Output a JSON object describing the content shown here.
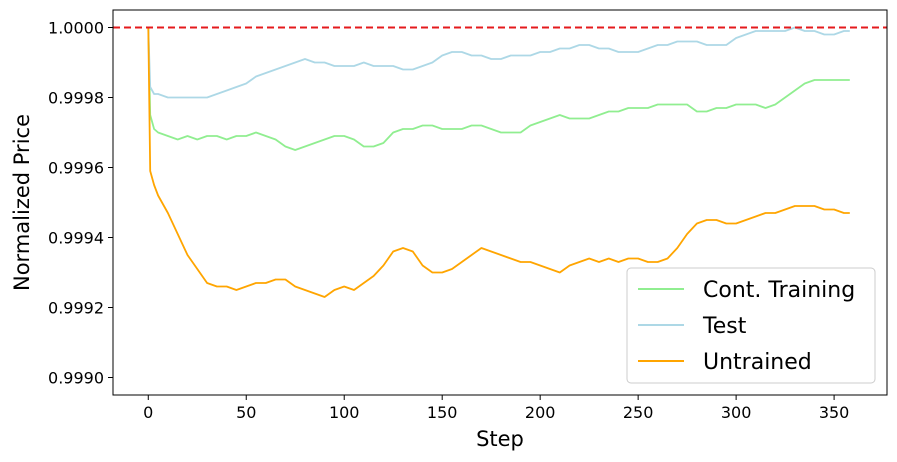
{
  "chart_data": {
    "type": "line",
    "xlabel": "Step",
    "ylabel": "Normalized Price",
    "xlim": [
      -18,
      377
    ],
    "ylim": [
      0.99895,
      1.00005
    ],
    "xticks": [
      0,
      50,
      100,
      150,
      200,
      250,
      300,
      350
    ],
    "yticks": [
      0.999,
      0.9992,
      0.9994,
      0.9996,
      0.9998,
      1.0
    ],
    "ytick_labels": [
      "0.9990",
      "0.9992",
      "0.9994",
      "0.9996",
      "0.9998",
      "1.0000"
    ],
    "reference_line": {
      "y": 1.0,
      "style": "dashed",
      "color": "#e41a1c"
    },
    "legend_position": "lower-right",
    "grid": false,
    "series": [
      {
        "name": "Cont. Training",
        "color": "#90ee90",
        "x": [
          0,
          1,
          3,
          5,
          10,
          15,
          20,
          25,
          30,
          35,
          40,
          45,
          50,
          55,
          60,
          65,
          70,
          75,
          80,
          85,
          90,
          95,
          100,
          105,
          110,
          115,
          120,
          125,
          130,
          135,
          140,
          145,
          150,
          155,
          160,
          165,
          170,
          175,
          180,
          185,
          190,
          195,
          200,
          205,
          210,
          215,
          220,
          225,
          230,
          235,
          240,
          245,
          250,
          255,
          260,
          265,
          270,
          275,
          280,
          285,
          290,
          295,
          300,
          305,
          310,
          315,
          320,
          325,
          330,
          335,
          340,
          345,
          350,
          355,
          358
        ],
        "y": [
          1.0,
          0.99975,
          0.99971,
          0.9997,
          0.99969,
          0.99968,
          0.99969,
          0.99968,
          0.99969,
          0.99969,
          0.99968,
          0.99969,
          0.99969,
          0.9997,
          0.99969,
          0.99968,
          0.99966,
          0.99965,
          0.99966,
          0.99967,
          0.99968,
          0.99969,
          0.99969,
          0.99968,
          0.99966,
          0.99966,
          0.99967,
          0.9997,
          0.99971,
          0.99971,
          0.99972,
          0.99972,
          0.99971,
          0.99971,
          0.99971,
          0.99972,
          0.99972,
          0.99971,
          0.9997,
          0.9997,
          0.9997,
          0.99972,
          0.99973,
          0.99974,
          0.99975,
          0.99974,
          0.99974,
          0.99974,
          0.99975,
          0.99976,
          0.99976,
          0.99977,
          0.99977,
          0.99977,
          0.99978,
          0.99978,
          0.99978,
          0.99978,
          0.99976,
          0.99976,
          0.99977,
          0.99977,
          0.99978,
          0.99978,
          0.99978,
          0.99977,
          0.99978,
          0.9998,
          0.99982,
          0.99984,
          0.99985,
          0.99985,
          0.99985,
          0.99985,
          0.99985
        ]
      },
      {
        "name": "Test",
        "color": "#add8e6",
        "x": [
          0,
          1,
          3,
          5,
          10,
          15,
          20,
          25,
          30,
          35,
          40,
          45,
          50,
          55,
          60,
          65,
          70,
          75,
          80,
          85,
          90,
          95,
          100,
          105,
          110,
          115,
          120,
          125,
          130,
          135,
          140,
          145,
          150,
          155,
          160,
          165,
          170,
          175,
          180,
          185,
          190,
          195,
          200,
          205,
          210,
          215,
          220,
          225,
          230,
          235,
          240,
          245,
          250,
          255,
          260,
          265,
          270,
          275,
          280,
          285,
          290,
          295,
          300,
          305,
          310,
          315,
          320,
          325,
          330,
          335,
          340,
          345,
          350,
          355,
          358
        ],
        "y": [
          1.0,
          0.99983,
          0.99981,
          0.99981,
          0.9998,
          0.9998,
          0.9998,
          0.9998,
          0.9998,
          0.99981,
          0.99982,
          0.99983,
          0.99984,
          0.99986,
          0.99987,
          0.99988,
          0.99989,
          0.9999,
          0.99991,
          0.9999,
          0.9999,
          0.99989,
          0.99989,
          0.99989,
          0.9999,
          0.99989,
          0.99989,
          0.99989,
          0.99988,
          0.99988,
          0.99989,
          0.9999,
          0.99992,
          0.99993,
          0.99993,
          0.99992,
          0.99992,
          0.99991,
          0.99991,
          0.99992,
          0.99992,
          0.99992,
          0.99993,
          0.99993,
          0.99994,
          0.99994,
          0.99995,
          0.99995,
          0.99994,
          0.99994,
          0.99993,
          0.99993,
          0.99993,
          0.99994,
          0.99995,
          0.99995,
          0.99996,
          0.99996,
          0.99996,
          0.99995,
          0.99995,
          0.99995,
          0.99997,
          0.99998,
          0.99999,
          0.99999,
          0.99999,
          0.99999,
          1.0,
          0.99999,
          0.99999,
          0.99998,
          0.99998,
          0.99999,
          0.99999
        ]
      },
      {
        "name": "Untrained",
        "color": "#ffa500",
        "x": [
          0,
          1,
          3,
          5,
          10,
          15,
          20,
          25,
          30,
          35,
          40,
          45,
          50,
          55,
          60,
          65,
          70,
          75,
          80,
          85,
          90,
          95,
          100,
          105,
          110,
          115,
          120,
          125,
          130,
          135,
          140,
          145,
          150,
          155,
          160,
          165,
          170,
          175,
          180,
          185,
          190,
          195,
          200,
          205,
          210,
          215,
          220,
          225,
          230,
          235,
          240,
          245,
          250,
          255,
          260,
          265,
          270,
          275,
          280,
          285,
          290,
          295,
          300,
          305,
          310,
          315,
          320,
          325,
          330,
          335,
          340,
          345,
          350,
          355,
          358
        ],
        "y": [
          1.0,
          0.99959,
          0.99955,
          0.99952,
          0.99947,
          0.99941,
          0.99935,
          0.99931,
          0.99927,
          0.99926,
          0.99926,
          0.99925,
          0.99926,
          0.99927,
          0.99927,
          0.99928,
          0.99928,
          0.99926,
          0.99925,
          0.99924,
          0.99923,
          0.99925,
          0.99926,
          0.99925,
          0.99927,
          0.99929,
          0.99932,
          0.99936,
          0.99937,
          0.99936,
          0.99932,
          0.9993,
          0.9993,
          0.99931,
          0.99933,
          0.99935,
          0.99937,
          0.99936,
          0.99935,
          0.99934,
          0.99933,
          0.99933,
          0.99932,
          0.99931,
          0.9993,
          0.99932,
          0.99933,
          0.99934,
          0.99933,
          0.99934,
          0.99933,
          0.99934,
          0.99934,
          0.99933,
          0.99933,
          0.99934,
          0.99937,
          0.99941,
          0.99944,
          0.99945,
          0.99945,
          0.99944,
          0.99944,
          0.99945,
          0.99946,
          0.99947,
          0.99947,
          0.99948,
          0.99949,
          0.99949,
          0.99949,
          0.99948,
          0.99948,
          0.99947,
          0.99947
        ]
      }
    ]
  }
}
